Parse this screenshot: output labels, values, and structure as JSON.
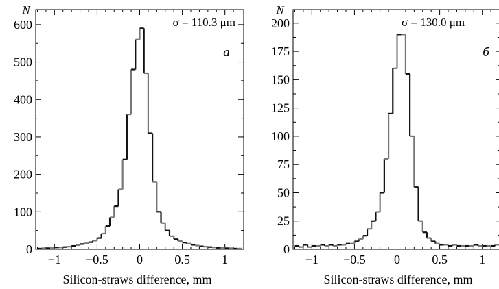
{
  "chart_data": [
    {
      "type": "histogram",
      "panel_label": "a",
      "annotation": "σ = 110.3 μm",
      "ylabel": "N",
      "xlabel": "Silicon-straws difference, mm",
      "xlim": [
        -1.22,
        1.22
      ],
      "ylim": [
        0,
        640
      ],
      "xticks": [
        -1,
        -0.5,
        0,
        0.5,
        1
      ],
      "xtick_labels": [
        "−1",
        "−0.5",
        "0",
        "0.5",
        "1"
      ],
      "yticks": [
        0,
        100,
        200,
        300,
        400,
        500,
        600
      ],
      "ytick_labels": [
        "0",
        "100",
        "200",
        "300",
        "400",
        "500",
        "600"
      ],
      "bins": {
        "x": [
          -1.2,
          -1.15,
          -1.1,
          -1.05,
          -1.0,
          -0.95,
          -0.9,
          -0.85,
          -0.8,
          -0.75,
          -0.7,
          -0.65,
          -0.6,
          -0.55,
          -0.5,
          -0.45,
          -0.4,
          -0.35,
          -0.3,
          -0.25,
          -0.2,
          -0.15,
          -0.1,
          -0.05,
          0.0,
          0.05,
          0.1,
          0.15,
          0.2,
          0.25,
          0.3,
          0.35,
          0.4,
          0.45,
          0.5,
          0.55,
          0.6,
          0.65,
          0.7,
          0.75,
          0.8,
          0.85,
          0.9,
          0.95,
          1.0,
          1.05,
          1.1,
          1.15
        ],
        "values": [
          2,
          3,
          3,
          4,
          5,
          5,
          6,
          7,
          9,
          11,
          14,
          16,
          19,
          23,
          30,
          42,
          62,
          85,
          115,
          160,
          240,
          360,
          480,
          560,
          590,
          470,
          310,
          180,
          100,
          70,
          50,
          35,
          27,
          22,
          18,
          15,
          12,
          10,
          8,
          7,
          6,
          5,
          4,
          4,
          3,
          3,
          2,
          2
        ],
        "bin_width": 0.05
      },
      "grid": false
    },
    {
      "type": "histogram",
      "panel_label": "б",
      "annotation": "σ = 130.0 μm",
      "ylabel": "N",
      "xlabel": "Silicon-straws difference, mm",
      "xlim": [
        -1.22,
        1.22
      ],
      "ylim": [
        0,
        212
      ],
      "xticks": [
        -1,
        -0.5,
        0,
        0.5,
        1
      ],
      "xtick_labels": [
        "−1",
        "−0.5",
        "0",
        "0.5",
        "1"
      ],
      "yticks": [
        0,
        25,
        50,
        75,
        100,
        125,
        150,
        175,
        200
      ],
      "ytick_labels": [
        "0",
        "25",
        "50",
        "75",
        "100",
        "125",
        "150",
        "175",
        "200"
      ],
      "bins": {
        "x": [
          -1.2,
          -1.15,
          -1.1,
          -1.05,
          -1.0,
          -0.95,
          -0.9,
          -0.85,
          -0.8,
          -0.75,
          -0.7,
          -0.65,
          -0.6,
          -0.55,
          -0.5,
          -0.45,
          -0.4,
          -0.35,
          -0.3,
          -0.25,
          -0.2,
          -0.15,
          -0.1,
          -0.05,
          0.0,
          0.05,
          0.1,
          0.15,
          0.2,
          0.25,
          0.3,
          0.35,
          0.4,
          0.45,
          0.5,
          0.55,
          0.6,
          0.65,
          0.7,
          0.75,
          0.8,
          0.85,
          0.9,
          0.95,
          1.0,
          1.05,
          1.1,
          1.15
        ],
        "values": [
          3,
          2,
          4,
          2,
          3,
          3,
          4,
          3,
          4,
          3,
          4,
          4,
          5,
          5,
          7,
          9,
          12,
          18,
          25,
          33,
          50,
          80,
          120,
          160,
          190,
          190,
          155,
          100,
          55,
          25,
          15,
          10,
          7,
          5,
          4,
          4,
          3,
          4,
          3,
          3,
          3,
          3,
          4,
          3,
          3,
          3,
          3,
          4
        ],
        "bin_width": 0.05
      },
      "grid": false
    }
  ]
}
